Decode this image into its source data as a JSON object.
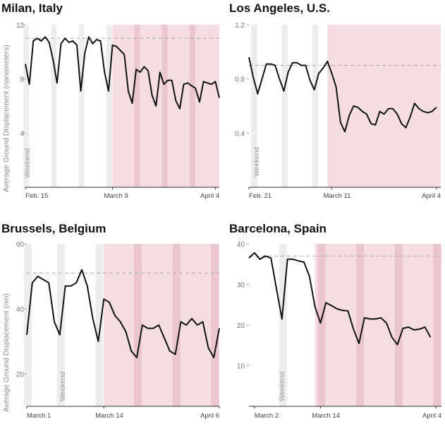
{
  "chart_data": [
    {
      "type": "line",
      "title": "Milan, Italy",
      "ylabel": "Average Ground Displacement (nanometers)",
      "ylim": [
        0,
        12
      ],
      "yticks": [
        4,
        8,
        12
      ],
      "baseline": 11,
      "x_tick_labels": [
        {
          "label": "Feb. 15",
          "x": 0
        },
        {
          "label": "March 9",
          "x": 22
        },
        {
          "label": "April 4",
          "x": 48
        }
      ],
      "weekend_label": "Weekend",
      "lockdown_start": 22,
      "x_max": 49,
      "weekends": [
        0,
        7,
        14,
        21,
        28,
        35,
        42
      ],
      "values": [
        9.1,
        7.6,
        10.8,
        11,
        10.8,
        11.1,
        10.7,
        9.4,
        7.7,
        10.6,
        11,
        10.7,
        10.8,
        10.5,
        7.1,
        9.9,
        11.1,
        10.6,
        10.9,
        10.8,
        8.5,
        7.1,
        10.5,
        10.4,
        10.1,
        9.8,
        7.1,
        6.2,
        8.7,
        8.5,
        8.9,
        8.6,
        6.8,
        6,
        8.5,
        7.6,
        7.9,
        7.9,
        6.4,
        5.8,
        7.6,
        7.7,
        7.5,
        7.3,
        6.3,
        7.8,
        7.7,
        7.6,
        7.8,
        6.6
      ]
    },
    {
      "type": "line",
      "title": "Los Angeles, U.S.",
      "ylabel": "",
      "ylim": [
        0,
        1.2
      ],
      "yticks": [
        0.4,
        0.8,
        1.2
      ],
      "baseline": 0.9,
      "x_tick_labels": [
        {
          "label": "Feb. 21",
          "x": 0
        },
        {
          "label": "March 11",
          "x": 19
        },
        {
          "label": "April 4",
          "x": 43
        }
      ],
      "weekend_label": "Weekend",
      "lockdown_start": 18,
      "x_max": 44,
      "weekends": [
        1,
        8,
        15
      ],
      "values": [
        0.96,
        0.81,
        0.69,
        0.8,
        0.91,
        0.91,
        0.9,
        0.8,
        0.71,
        0.85,
        0.92,
        0.92,
        0.9,
        0.9,
        0.79,
        0.72,
        0.84,
        0.88,
        0.93,
        0.84,
        0.74,
        0.48,
        0.41,
        0.53,
        0.6,
        0.59,
        0.56,
        0.54,
        0.47,
        0.46,
        0.56,
        0.54,
        0.58,
        0.58,
        0.54,
        0.47,
        0.44,
        0.52,
        0.62,
        0.58,
        0.56,
        0.55,
        0.56,
        0.59
      ]
    },
    {
      "type": "line",
      "title": "Brussels, Belgium",
      "ylabel": "Average Ground Displacement (nm)",
      "ylim": [
        10,
        60
      ],
      "yticks": [
        20,
        40,
        60
      ],
      "baseline": 51,
      "x_tick_labels": [
        {
          "label": "March 1",
          "x": 0
        },
        {
          "label": "March 14",
          "x": 14
        },
        {
          "label": "April 6",
          "x": 35
        }
      ],
      "weekend_label": "Weekend",
      "lockdown_start": 14,
      "x_max": 35,
      "weekends": [
        0,
        6,
        13,
        20,
        27,
        34
      ],
      "values": [
        32,
        48,
        50,
        49,
        48,
        36,
        32,
        47,
        47,
        48,
        52,
        47,
        37,
        30,
        43,
        42,
        38,
        36,
        33,
        27,
        25,
        35,
        34,
        34,
        35,
        31,
        27,
        26,
        36,
        35,
        37,
        35,
        36,
        28,
        25,
        34
      ]
    },
    {
      "type": "line",
      "title": "Barcelona, Spain",
      "ylabel": "",
      "ylim": [
        0,
        40
      ],
      "yticks": [
        10,
        20,
        30,
        40
      ],
      "baseline": 37,
      "x_tick_labels": [
        {
          "label": "March 2",
          "x": 1
        },
        {
          "label": "March 14",
          "x": 13
        },
        {
          "label": "April 4",
          "x": 34
        }
      ],
      "weekend_label": "Weekend",
      "lockdown_start": 12,
      "x_max": 35,
      "weekends": [
        6,
        13,
        20,
        27,
        34
      ],
      "values": [
        36.5,
        37.8,
        36.2,
        37,
        36.5,
        29,
        21.5,
        36.2,
        36.2,
        35.8,
        35.5,
        32,
        24.5,
        20.5,
        25.5,
        24.8,
        24,
        23.6,
        23.5,
        19,
        15.5,
        21.8,
        21.5,
        21.5,
        21.8,
        20.5,
        17,
        15.2,
        19.2,
        19.5,
        18.8,
        19,
        19.5,
        17
      ]
    }
  ]
}
